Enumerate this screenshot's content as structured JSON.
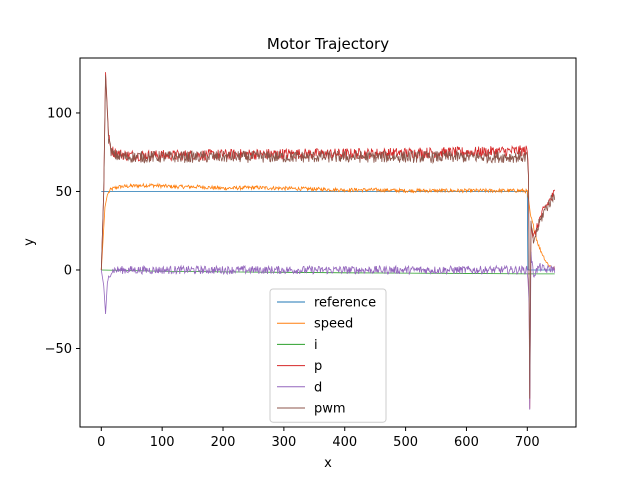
{
  "chart_data": {
    "type": "line",
    "title": "Motor Trajectory",
    "xlabel": "x",
    "ylabel": "y",
    "xlim": [
      -35,
      780
    ],
    "ylim": [
      -100,
      135
    ],
    "xticks": [
      0,
      100,
      200,
      300,
      400,
      500,
      600,
      700
    ],
    "yticks": [
      -50,
      0,
      50,
      100
    ],
    "xtick_labels": [
      "0",
      "100",
      "200",
      "300",
      "400",
      "500",
      "600",
      "700"
    ],
    "ytick_labels": [
      "−50",
      "0",
      "50",
      "100"
    ],
    "grid": false,
    "legend_position": "lower-center",
    "series": [
      {
        "name": "reference",
        "color": "#1f77b4",
        "points": [
          [
            0,
            50
          ],
          [
            700,
            50
          ],
          [
            701,
            0
          ],
          [
            745,
            0
          ]
        ]
      },
      {
        "name": "speed",
        "color": "#ff7f0e",
        "points": [
          [
            0,
            0
          ],
          [
            3,
            20
          ],
          [
            6,
            40
          ],
          [
            10,
            48
          ],
          [
            15,
            51
          ],
          [
            20,
            52
          ],
          [
            30,
            53
          ],
          [
            50,
            53.5
          ],
          [
            80,
            54
          ],
          [
            120,
            53
          ],
          [
            160,
            53
          ],
          [
            200,
            52
          ],
          [
            250,
            52.5
          ],
          [
            300,
            52
          ],
          [
            350,
            51.5
          ],
          [
            400,
            51
          ],
          [
            450,
            51
          ],
          [
            500,
            50.5
          ],
          [
            550,
            50.5
          ],
          [
            600,
            50.5
          ],
          [
            650,
            50.5
          ],
          [
            695,
            50.5
          ],
          [
            700,
            50
          ],
          [
            705,
            35
          ],
          [
            710,
            28
          ],
          [
            715,
            20
          ],
          [
            720,
            14
          ],
          [
            725,
            10
          ],
          [
            730,
            6
          ],
          [
            735,
            3
          ],
          [
            740,
            2
          ],
          [
            745,
            1
          ]
        ],
        "noise": 1.2
      },
      {
        "name": "i",
        "color": "#2ca02c",
        "points": [
          [
            0,
            0
          ],
          [
            100,
            -0.8
          ],
          [
            200,
            -1.2
          ],
          [
            300,
            -1.5
          ],
          [
            400,
            -1.8
          ],
          [
            500,
            -2
          ],
          [
            600,
            -2.2
          ],
          [
            700,
            -2.5
          ],
          [
            745,
            -2.5
          ]
        ]
      },
      {
        "name": "p",
        "color": "#d62728",
        "points": [
          [
            0,
            0
          ],
          [
            4,
            50
          ],
          [
            7,
            126
          ],
          [
            9,
            110
          ],
          [
            12,
            85
          ],
          [
            15,
            78
          ],
          [
            20,
            75
          ],
          [
            40,
            73
          ],
          [
            80,
            73
          ],
          [
            120,
            73
          ],
          [
            200,
            73.5
          ],
          [
            300,
            74
          ],
          [
            400,
            74
          ],
          [
            500,
            74.5
          ],
          [
            600,
            75
          ],
          [
            650,
            75.5
          ],
          [
            700,
            76
          ],
          [
            702,
            60
          ],
          [
            704,
            -85
          ],
          [
            706,
            30
          ],
          [
            710,
            20
          ],
          [
            715,
            25
          ],
          [
            720,
            32
          ],
          [
            725,
            36
          ],
          [
            730,
            40
          ],
          [
            735,
            43
          ],
          [
            740,
            46
          ],
          [
            745,
            49
          ]
        ],
        "noise": 3.5
      },
      {
        "name": "d",
        "color": "#9467bd",
        "points": [
          [
            0,
            0
          ],
          [
            4,
            -10
          ],
          [
            7,
            -28
          ],
          [
            10,
            -8
          ],
          [
            14,
            -2
          ],
          [
            20,
            0
          ],
          [
            100,
            0
          ],
          [
            200,
            0
          ],
          [
            300,
            0
          ],
          [
            400,
            0
          ],
          [
            500,
            0
          ],
          [
            600,
            0
          ],
          [
            700,
            0
          ],
          [
            703,
            -20
          ],
          [
            704,
            -88
          ],
          [
            706,
            10
          ],
          [
            710,
            -3
          ],
          [
            720,
            2
          ],
          [
            730,
            0
          ],
          [
            740,
            1
          ],
          [
            745,
            0
          ]
        ],
        "noise": 2.6
      },
      {
        "name": "pwm",
        "color": "#8c564b",
        "points": [
          [
            0,
            0
          ],
          [
            4,
            50
          ],
          [
            7,
            124
          ],
          [
            9,
            108
          ],
          [
            12,
            84
          ],
          [
            15,
            77
          ],
          [
            20,
            73
          ],
          [
            40,
            72
          ],
          [
            80,
            72
          ],
          [
            120,
            72
          ],
          [
            200,
            72
          ],
          [
            300,
            72
          ],
          [
            400,
            72
          ],
          [
            500,
            72
          ],
          [
            600,
            72
          ],
          [
            650,
            72
          ],
          [
            700,
            72
          ],
          [
            702,
            58
          ],
          [
            704,
            -80
          ],
          [
            706,
            28
          ],
          [
            710,
            18
          ],
          [
            715,
            24
          ],
          [
            720,
            30
          ],
          [
            725,
            35
          ],
          [
            730,
            39
          ],
          [
            735,
            42
          ],
          [
            740,
            45
          ],
          [
            745,
            48
          ]
        ],
        "noise": 3.8
      }
    ]
  }
}
